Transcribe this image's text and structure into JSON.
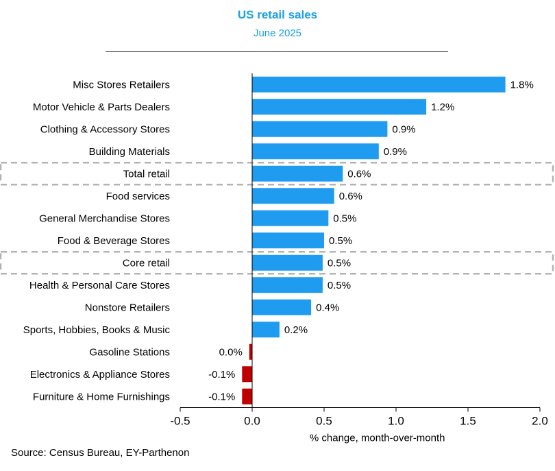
{
  "chart_data": {
    "type": "bar",
    "orientation": "horizontal",
    "title": "US retail sales",
    "subtitle": "June 2025",
    "xlabel": "% change, month-over-month",
    "ylabel": "",
    "xlim": [
      -0.5,
      2.0
    ],
    "xticks": [
      "-0.5",
      "0.0",
      "0.5",
      "1.0",
      "1.5",
      "2.0"
    ],
    "xtick_values": [
      -0.5,
      0.0,
      0.5,
      1.0,
      1.5,
      2.0
    ],
    "grid": false,
    "categories": [
      "Misc Stores Retailers",
      "Motor Vehicle & Parts Dealers",
      "Clothing & Accessory Stores",
      "Building Materials",
      "Total retail",
      "Food services",
      "General Merchandise Stores",
      "Food & Beverage Stores",
      "Core retail",
      "Health & Personal Care Stores",
      "Nonstore Retailers",
      "Sports, Hobbies, Books & Music",
      "Gasoline Stations",
      "Electronics & Appliance Stores",
      "Furniture & Home Furnishings"
    ],
    "values": [
      1.76,
      1.21,
      0.94,
      0.88,
      0.63,
      0.57,
      0.53,
      0.5,
      0.49,
      0.49,
      0.41,
      0.19,
      -0.02,
      -0.07,
      -0.07
    ],
    "data_labels": [
      "1.8%",
      "1.2%",
      "0.9%",
      "0.9%",
      "0.6%",
      "0.6%",
      "0.5%",
      "0.5%",
      "0.5%",
      "0.5%",
      "0.4%",
      "0.2%",
      "0.0%",
      "-0.1%",
      "-0.1%"
    ],
    "highlighted": [
      "Total retail",
      "Core retail"
    ],
    "colors": {
      "positive": "#1f9bf0",
      "negative": "#c00000",
      "highlight_box": "#b3b3b3",
      "title": "#1aa0e8"
    },
    "source": "Source: Census Bureau, EY-Parthenon"
  }
}
